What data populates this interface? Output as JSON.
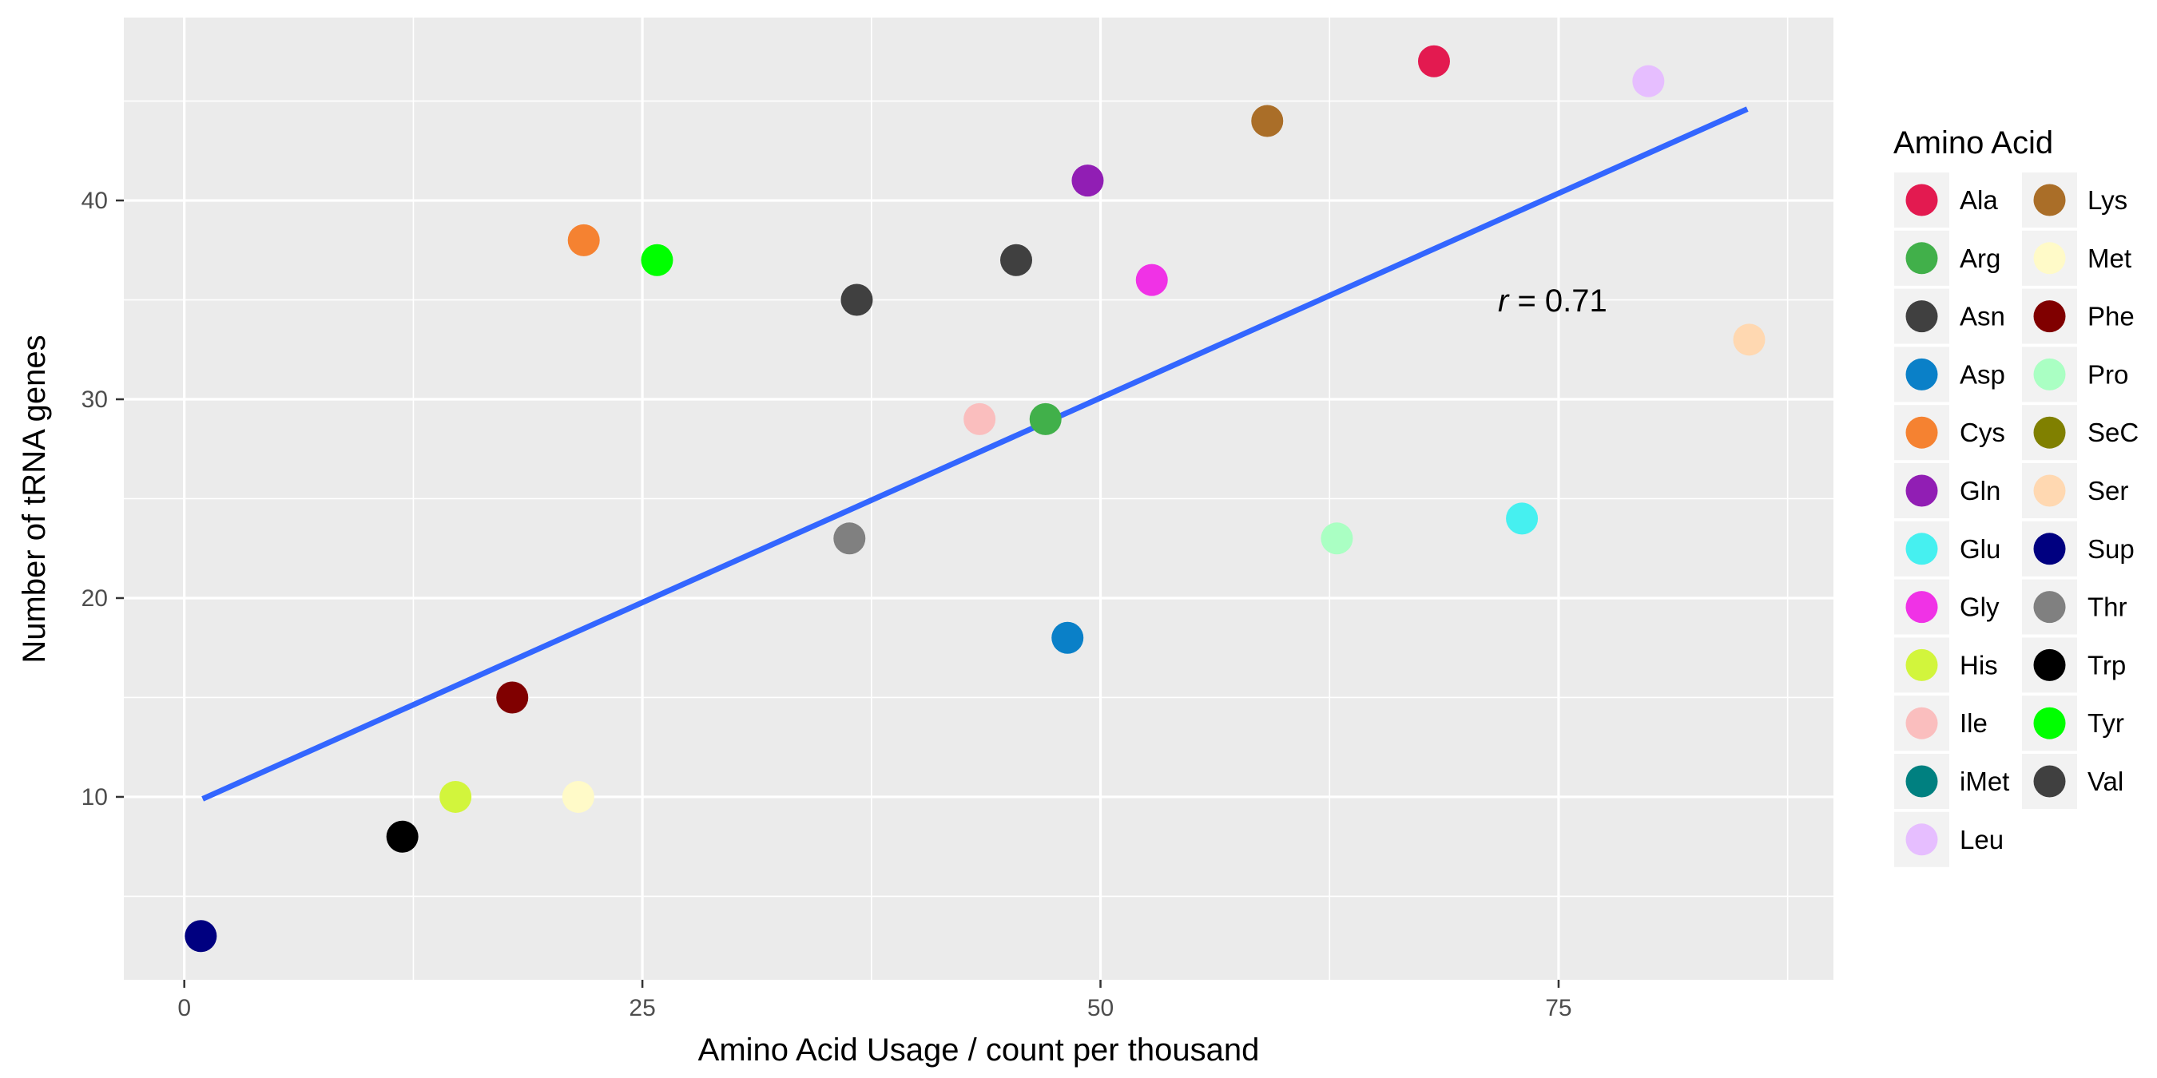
{
  "chart_data": {
    "type": "scatter",
    "title": "",
    "xlabel": "Amino Acid Usage / count per thousand",
    "ylabel": "Number of tRNA genes",
    "xlim": [
      -3.3,
      90
    ],
    "ylim": [
      0.8,
      49.2
    ],
    "x_ticks": [
      0,
      25,
      50,
      75
    ],
    "y_ticks": [
      10,
      20,
      30,
      40
    ],
    "grid": true,
    "legend_title": "Amino Acid",
    "legend_position": "right",
    "annotation": {
      "italic": "r",
      "text": " = 0.71",
      "x": 71.8,
      "y": 35
    },
    "trend_line": {
      "x": [
        1,
        85.3
      ],
      "y": [
        9.9,
        44.6
      ],
      "color": "#3366ff"
    },
    "series": [
      {
        "name": "Ala",
        "color": "#e31a50",
        "points": [
          [
            68.2,
            47
          ]
        ]
      },
      {
        "name": "Arg",
        "color": "#41b04a",
        "points": [
          [
            47,
            29
          ]
        ]
      },
      {
        "name": "Asn",
        "color": "#404040",
        "points": [
          [
            36.7,
            35
          ],
          [
            45.4,
            37
          ]
        ]
      },
      {
        "name": "Asp",
        "color": "#0a80c8",
        "points": [
          [
            48.2,
            18
          ]
        ]
      },
      {
        "name": "Cys",
        "color": "#f58231",
        "points": [
          [
            21.8,
            38
          ]
        ]
      },
      {
        "name": "Gln",
        "color": "#911eb4",
        "points": [
          [
            49.3,
            41
          ]
        ]
      },
      {
        "name": "Glu",
        "color": "#46f0f0",
        "points": [
          [
            73,
            24
          ]
        ]
      },
      {
        "name": "Gly",
        "color": "#f032e6",
        "points": [
          [
            52.8,
            36
          ]
        ]
      },
      {
        "name": "His",
        "color": "#d2f53c",
        "points": [
          [
            14.8,
            10
          ]
        ]
      },
      {
        "name": "Ile",
        "color": "#fabebe",
        "points": [
          [
            43.4,
            29
          ]
        ]
      },
      {
        "name": "iMet",
        "color": "#008080",
        "points": []
      },
      {
        "name": "Leu",
        "color": "#e6beff",
        "points": [
          [
            79.9,
            46
          ]
        ]
      },
      {
        "name": "Lys",
        "color": "#aa6e28",
        "points": [
          [
            59.1,
            44
          ]
        ]
      },
      {
        "name": "Met",
        "color": "#fffac8",
        "points": [
          [
            21.5,
            10
          ]
        ]
      },
      {
        "name": "Phe",
        "color": "#800000",
        "points": [
          [
            17.9,
            15
          ]
        ]
      },
      {
        "name": "Pro",
        "color": "#aaffc3",
        "points": [
          [
            62.9,
            23
          ]
        ]
      },
      {
        "name": "SeC",
        "color": "#808000",
        "points": []
      },
      {
        "name": "Ser",
        "color": "#ffd8b1",
        "points": [
          [
            85.4,
            33
          ]
        ]
      },
      {
        "name": "Sup",
        "color": "#000080",
        "points": [
          [
            0.9,
            3
          ]
        ]
      },
      {
        "name": "Thr",
        "color": "#808080",
        "points": [
          [
            36.3,
            23
          ]
        ]
      },
      {
        "name": "Trp",
        "color": "#000000",
        "points": [
          [
            11.9,
            8
          ]
        ]
      },
      {
        "name": "Tyr",
        "color": "#00ff00",
        "points": [
          [
            25.8,
            37
          ]
        ]
      },
      {
        "name": "Val",
        "color": "#404040",
        "points": []
      }
    ]
  }
}
